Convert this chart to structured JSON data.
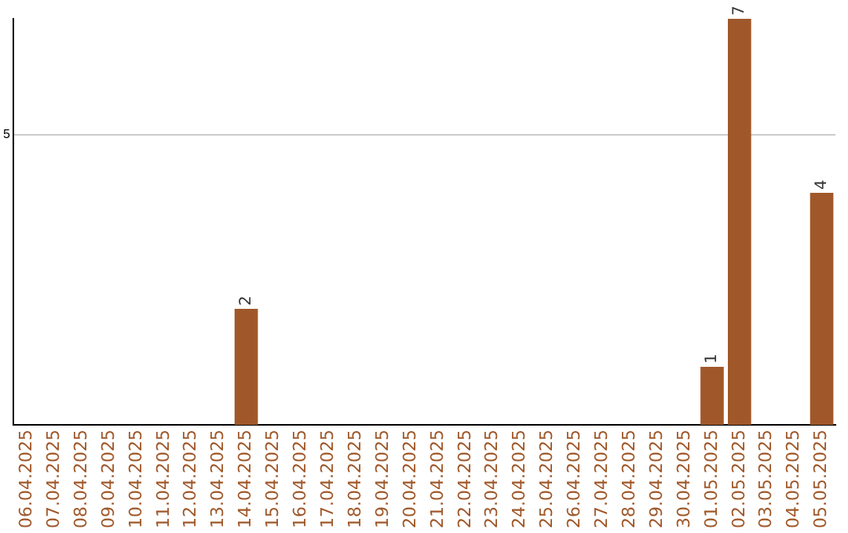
{
  "chart_data": {
    "type": "bar",
    "categories": [
      "06.04.2025",
      "07.04.2025",
      "08.04.2025",
      "09.04.2025",
      "10.04.2025",
      "11.04.2025",
      "12.04.2025",
      "13.04.2025",
      "14.04.2025",
      "15.04.2025",
      "16.04.2025",
      "17.04.2025",
      "18.04.2025",
      "19.04.2025",
      "20.04.2025",
      "21.04.2025",
      "22.04.2025",
      "23.04.2025",
      "24.04.2025",
      "25.04.2025",
      "26.04.2025",
      "27.04.2025",
      "28.04.2025",
      "29.04.2025",
      "30.04.2025",
      "01.05.2025",
      "02.05.2025",
      "03.05.2025",
      "04.05.2025",
      "05.05.2025"
    ],
    "values": [
      0,
      0,
      0,
      0,
      0,
      0,
      0,
      0,
      2,
      0,
      0,
      0,
      0,
      0,
      0,
      0,
      0,
      0,
      0,
      0,
      0,
      0,
      0,
      0,
      0,
      1,
      7,
      0,
      0,
      4
    ],
    "value_labels": [
      null,
      null,
      null,
      null,
      null,
      null,
      null,
      null,
      "2",
      null,
      null,
      null,
      null,
      null,
      null,
      null,
      null,
      null,
      null,
      null,
      null,
      null,
      null,
      null,
      null,
      "1",
      "7",
      null,
      null,
      "4"
    ],
    "color": "#a0582a",
    "ylim": [
      0,
      7
    ],
    "yticks": [
      5
    ],
    "grid": "y",
    "legend": false
  }
}
